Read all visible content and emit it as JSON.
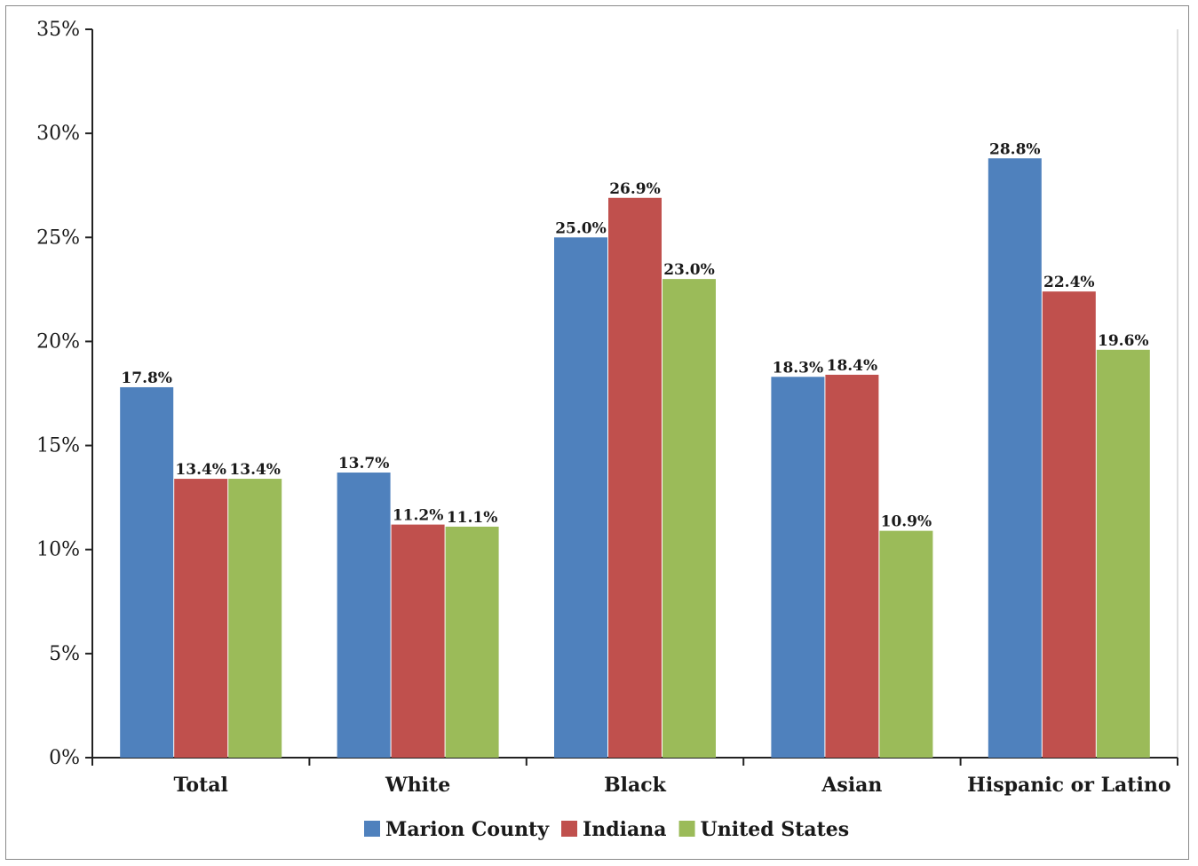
{
  "chart_data": {
    "type": "bar",
    "title": "",
    "xlabel": "",
    "ylabel": "",
    "categories": [
      "Total",
      "White",
      "Black",
      "Asian",
      "Hispanic or Latino"
    ],
    "series": [
      {
        "name": "Marion County",
        "color": "#4f81bd",
        "values": [
          17.8,
          13.7,
          25.0,
          18.3,
          28.8
        ],
        "labels": [
          "17.8%",
          "13.7%",
          "25.0%",
          "18.3%",
          "28.8%"
        ]
      },
      {
        "name": "Indiana",
        "color": "#c0504d",
        "values": [
          13.4,
          11.2,
          26.9,
          18.4,
          22.4
        ],
        "labels": [
          "13.4%",
          "11.2%",
          "26.9%",
          "18.4%",
          "22.4%"
        ]
      },
      {
        "name": "United States",
        "color": "#9bbb59",
        "values": [
          13.4,
          11.1,
          23.0,
          10.9,
          19.6
        ],
        "labels": [
          "13.4%",
          "11.1%",
          "23.0%",
          "10.9%",
          "19.6%"
        ]
      }
    ],
    "ylim": [
      0,
      35
    ],
    "yticks": [
      "0%",
      "5%",
      "10%",
      "15%",
      "20%",
      "25%",
      "30%",
      "35%"
    ],
    "grid": false,
    "legend_position": "bottom"
  }
}
